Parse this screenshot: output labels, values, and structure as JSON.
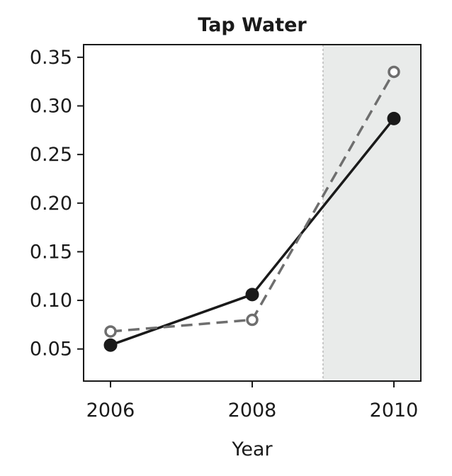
{
  "chart_data": {
    "type": "line",
    "title": "Tap Water",
    "xlabel": "Year",
    "ylabel": "",
    "x": [
      2006,
      2008,
      2010
    ],
    "xlim": [
      2005.62,
      2010.38
    ],
    "ylim": [
      0.017,
      0.363
    ],
    "xticks": [
      "2006",
      "2008",
      "2010"
    ],
    "yticks": [
      "0.05",
      "0.10",
      "0.15",
      "0.20",
      "0.25",
      "0.30",
      "0.35"
    ],
    "grid": false,
    "shaded_region": {
      "x_start": 2009,
      "x_end": 2010.38,
      "color": "#e9ebea",
      "boundary_line": "dotted"
    },
    "series": [
      {
        "values": [
          0.054,
          0.106,
          0.287
        ],
        "color": "#1a1a1a",
        "line_style": "solid",
        "marker": "filled-circle"
      },
      {
        "values": [
          0.068,
          0.08,
          0.335
        ],
        "color": "#6e6e6e",
        "line_style": "dashed",
        "marker": "open-circle"
      }
    ]
  }
}
